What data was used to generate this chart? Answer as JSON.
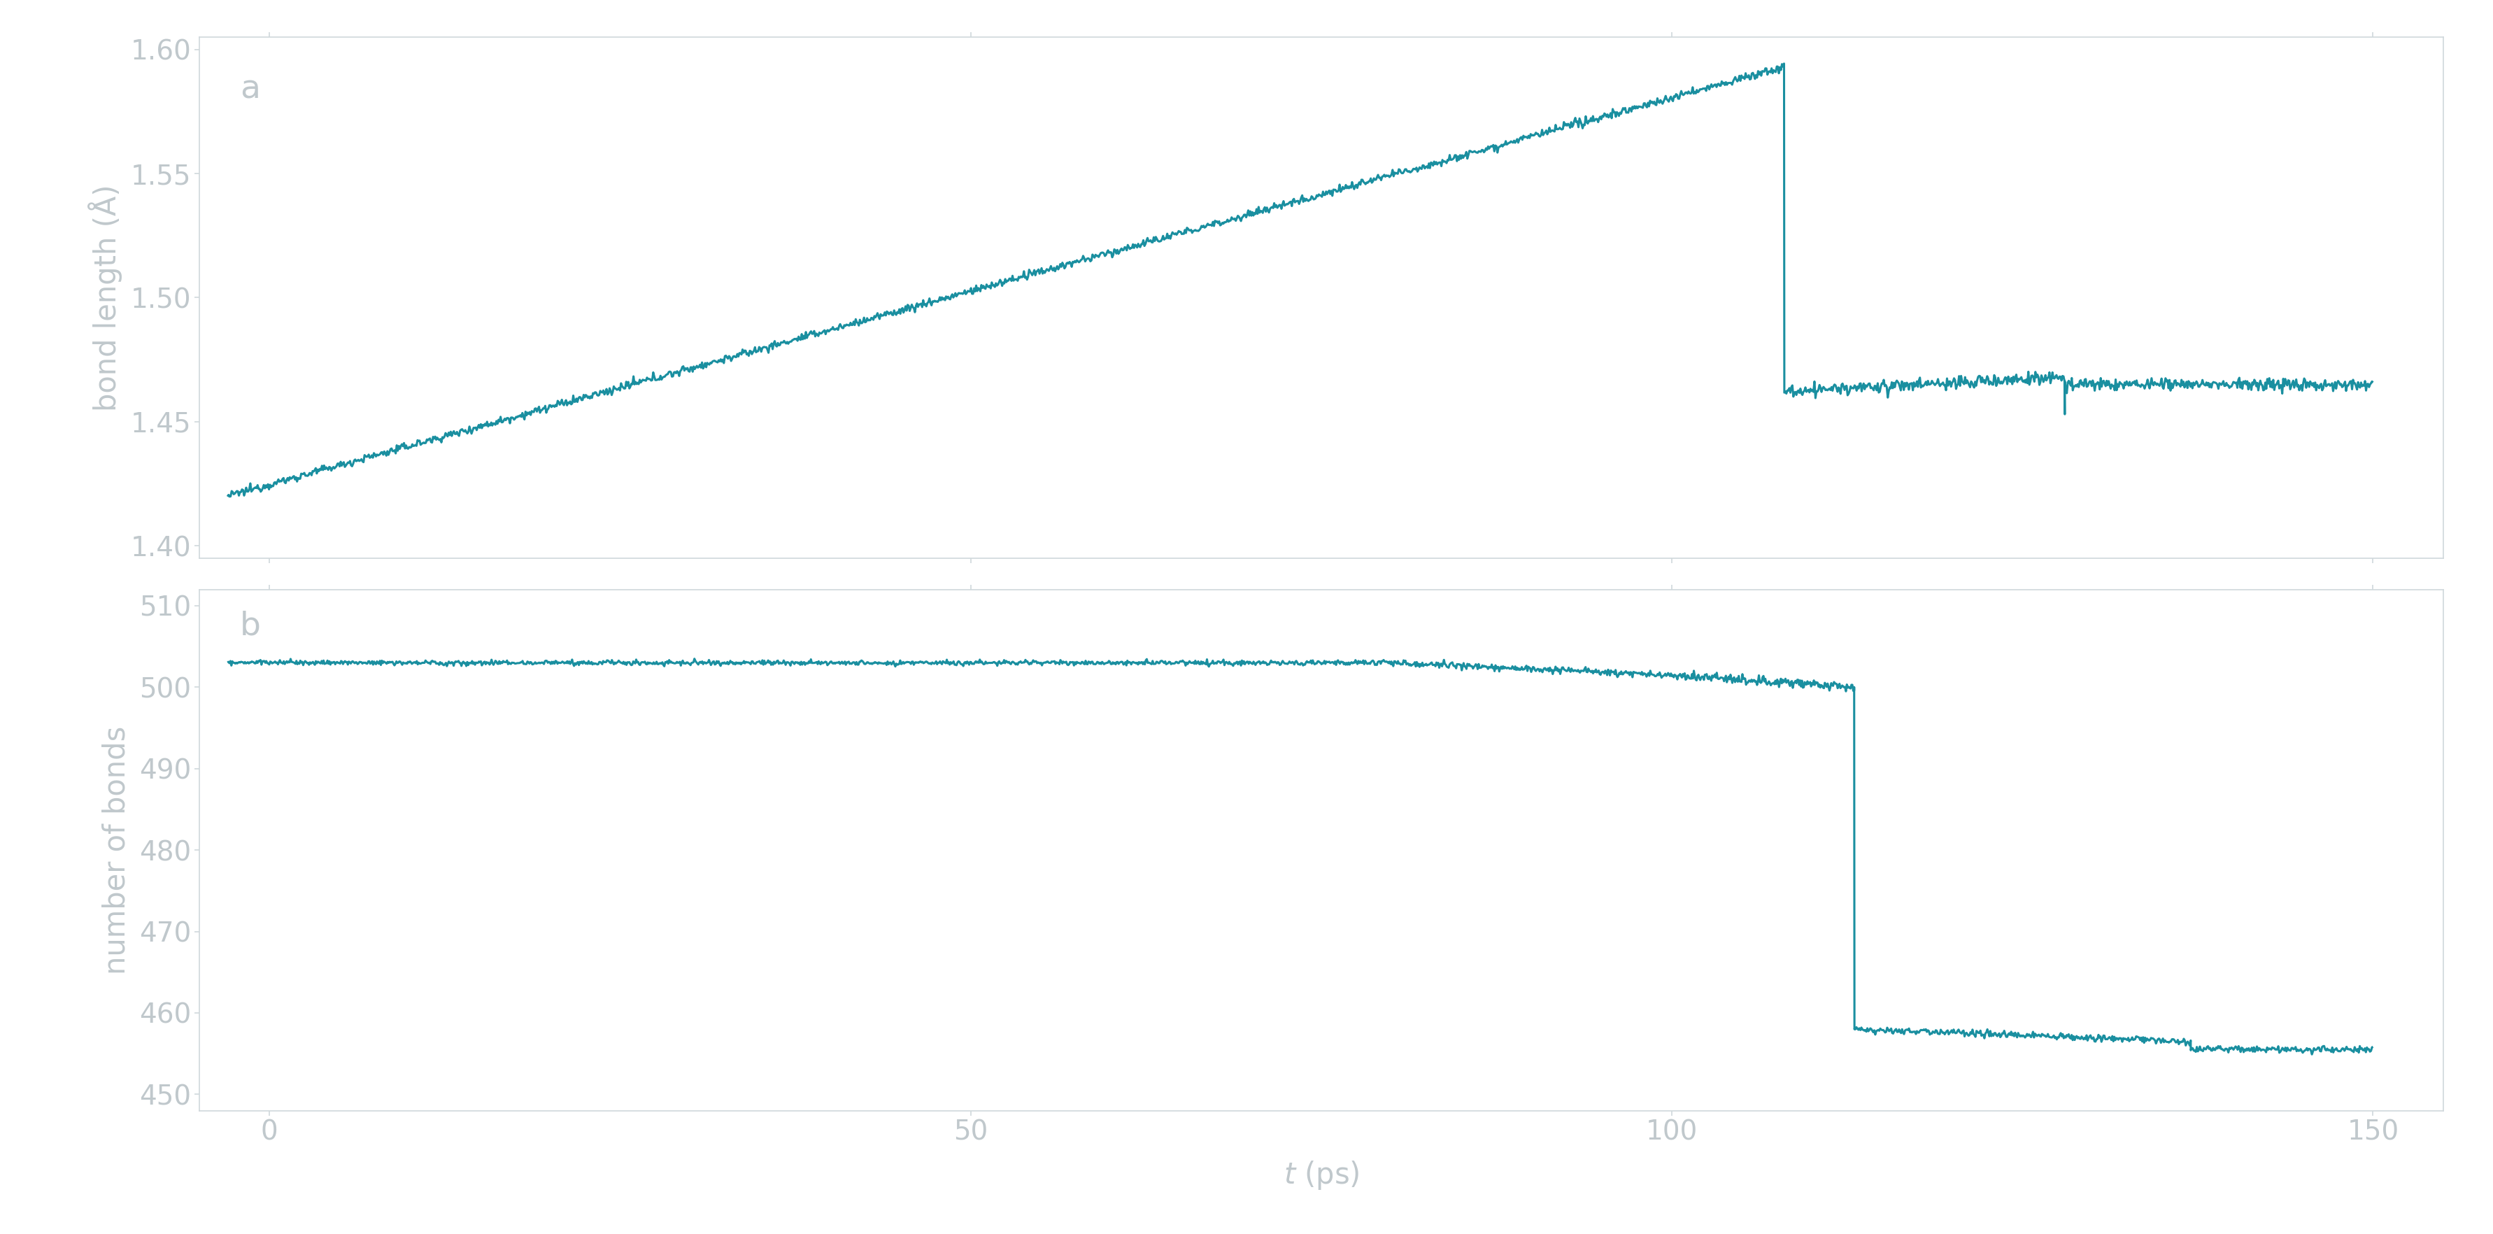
{
  "line_color": "#1a8fa0",
  "background_color": "#ffffff",
  "fig_background": "#ffffff",
  "label_a": "a",
  "label_b": "b",
  "ylabel_a": "bond length (Å)",
  "ylabel_b": "number of bonds",
  "xlabel": "t (ps)",
  "xlim": [
    -5,
    155
  ],
  "ylim_a": [
    1.395,
    1.605
  ],
  "ylim_b": [
    448,
    512
  ],
  "yticks_a": [
    1.4,
    1.45,
    1.5,
    1.55,
    1.6
  ],
  "yticks_b": [
    450,
    460,
    470,
    480,
    490,
    500,
    510
  ],
  "xticks": [
    0,
    50,
    100,
    150
  ],
  "tick_label_color": "#c0c8cc",
  "axis_color": "#d0d8dc",
  "label_fontsize": 30,
  "tick_fontsize": 28,
  "annot_fontsize": 34,
  "line_width": 2.2
}
